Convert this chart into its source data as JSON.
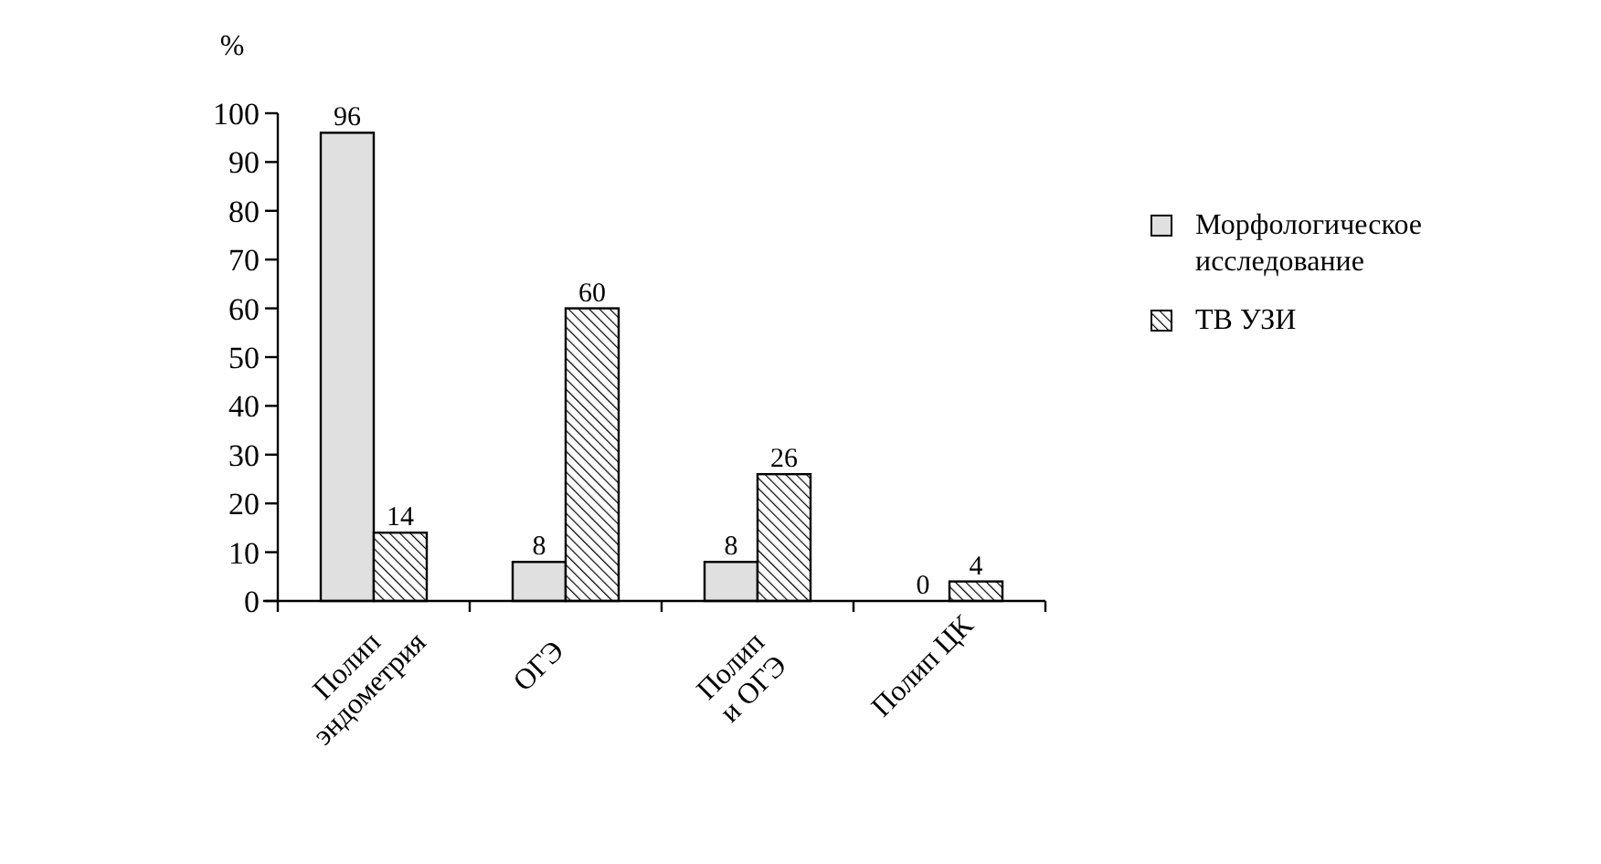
{
  "chart_data": {
    "type": "bar",
    "ylabel": "%",
    "categories": [
      "Полип\nэндометрия",
      "ОГЭ",
      "Полип\nи ОГЭ",
      "Полип ЦК"
    ],
    "series": [
      {
        "name": "Морфологическое\nисследование",
        "color": "#e0e0e0",
        "values": [
          96,
          8,
          8,
          0
        ]
      },
      {
        "name": "ТВ УЗИ",
        "color": "#000000",
        "values": [
          14,
          60,
          26,
          4
        ]
      }
    ],
    "ylim": [
      0,
      100
    ],
    "yticks": [
      0,
      10,
      20,
      30,
      40,
      50,
      60,
      70,
      80,
      90,
      100
    ],
    "data_labels": true,
    "legend": "right"
  }
}
